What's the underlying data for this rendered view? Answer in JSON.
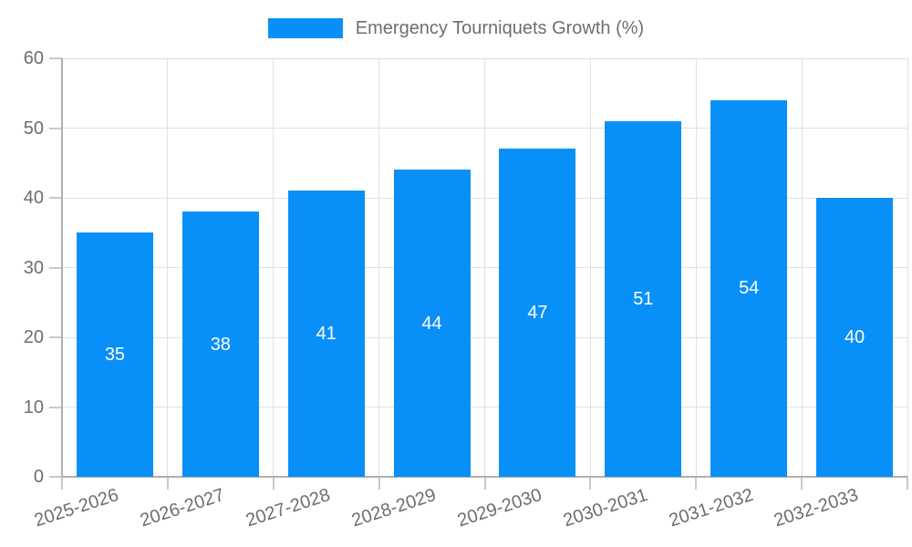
{
  "chart_data": {
    "type": "bar",
    "title": "Emergency Tourniquets Growth (%)",
    "series_name": "Emergency Tourniquets Growth (%)",
    "categories": [
      "2025-2026",
      "2026-2027",
      "2027-2028",
      "2028-2029",
      "2029-2030",
      "2030-2031",
      "2031-2032",
      "2032-2033"
    ],
    "values": [
      35,
      38,
      41,
      44,
      47,
      51,
      54,
      40
    ],
    "xlabel": "",
    "ylabel": "",
    "ylim": [
      0,
      60
    ],
    "yticks": [
      0,
      10,
      20,
      30,
      40,
      50,
      60
    ],
    "grid": true,
    "legend_position": "top-center",
    "value_label_position": "inside-center",
    "x_tick_rotation_deg": -18
  },
  "colors": {
    "bar": "#0990f8",
    "grid_line": "#e0e0e0",
    "axis_line": "#b0b0b0",
    "tick_mark": "#c9c9c9",
    "axis_text": "#6e6e6e",
    "value_label_text": "#ffffff",
    "background": "#ffffff"
  }
}
